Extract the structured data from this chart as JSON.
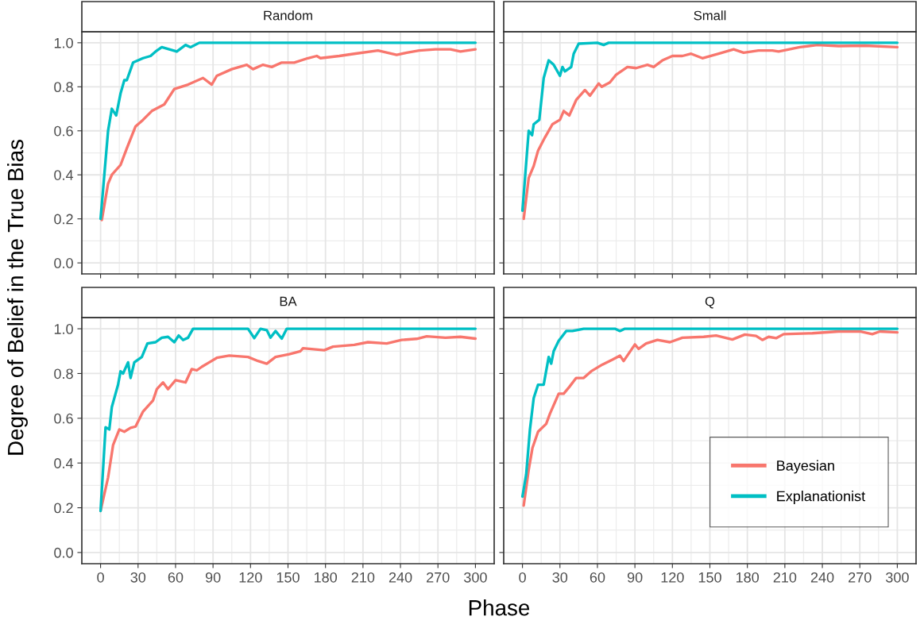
{
  "chart_data": [
    {
      "type": "line",
      "title": "Random",
      "ylabel": "Degree of Belief in the True Bias",
      "xlim": [
        -15,
        315
      ],
      "ylim": [
        -0.05,
        1.05
      ],
      "xticks": [
        {
          "value": 0,
          "label": null
        },
        {
          "value": 30,
          "label": null
        },
        {
          "value": 60,
          "label": null
        },
        {
          "value": 90,
          "label": null
        },
        {
          "value": 120,
          "label": null
        },
        {
          "value": 150,
          "label": null
        },
        {
          "value": 180,
          "label": null
        },
        {
          "value": 210,
          "label": null
        },
        {
          "value": 240,
          "label": null
        },
        {
          "value": 270,
          "label": null
        },
        {
          "value": 300,
          "label": null
        }
      ],
      "yticks": [
        {
          "value": 0,
          "label": "0.0"
        },
        {
          "value": 0.2,
          "label": "0.2"
        },
        {
          "value": 0.4,
          "label": "0.4"
        },
        {
          "value": 0.6,
          "label": "0.6"
        },
        {
          "value": 0.8,
          "label": "0.8"
        },
        {
          "value": 1,
          "label": "1.0"
        }
      ],
      "grid": true,
      "legend": false,
      "tick_labels": "y",
      "series": [
        {
          "color": "#f8766d",
          "x": [
            1,
            6,
            9,
            16,
            21,
            28,
            34,
            41,
            51,
            59,
            70,
            82,
            89,
            93,
            105,
            117,
            122,
            130,
            137,
            145,
            155,
            166,
            173,
            176,
            191,
            203,
            222,
            237,
            245,
            255,
            268,
            280,
            288,
            300
          ],
          "values": [
            0.195,
            0.36,
            0.4,
            0.445,
            0.52,
            0.62,
            0.65,
            0.69,
            0.72,
            0.79,
            0.81,
            0.84,
            0.81,
            0.85,
            0.88,
            0.9,
            0.88,
            0.9,
            0.89,
            0.91,
            0.91,
            0.93,
            0.94,
            0.93,
            0.94,
            0.95,
            0.965,
            0.945,
            0.955,
            0.965,
            0.97,
            0.97,
            0.96,
            0.97
          ]
        },
        {
          "color": "#00bfc4",
          "x": [
            0,
            6,
            9,
            12.5,
            16,
            19,
            21,
            26,
            34,
            40,
            44,
            49,
            55,
            61,
            68,
            72,
            79,
            300
          ],
          "values": [
            0.2,
            0.6,
            0.7,
            0.67,
            0.77,
            0.83,
            0.83,
            0.91,
            0.93,
            0.94,
            0.96,
            0.98,
            0.97,
            0.96,
            0.99,
            0.98,
            1.0,
            1.0
          ]
        }
      ]
    },
    {
      "type": "line",
      "title": "Small",
      "xlim": [
        -15,
        315
      ],
      "ylim": [
        -0.05,
        1.05
      ],
      "xticks": [
        {
          "value": 0,
          "label": null
        },
        {
          "value": 30,
          "label": null
        },
        {
          "value": 60,
          "label": null
        },
        {
          "value": 90,
          "label": null
        },
        {
          "value": 120,
          "label": null
        },
        {
          "value": 150,
          "label": null
        },
        {
          "value": 180,
          "label": null
        },
        {
          "value": 210,
          "label": null
        },
        {
          "value": 240,
          "label": null
        },
        {
          "value": 270,
          "label": null
        },
        {
          "value": 300,
          "label": null
        }
      ],
      "yticks": [
        {
          "value": 0,
          "label": null
        },
        {
          "value": 0.2,
          "label": null
        },
        {
          "value": 0.4,
          "label": null
        },
        {
          "value": 0.6,
          "label": null
        },
        {
          "value": 0.8,
          "label": null
        },
        {
          "value": 1,
          "label": null
        }
      ],
      "grid": true,
      "legend": false,
      "tick_labels": false,
      "series": [
        {
          "color": "#f8766d",
          "x": [
            1,
            5,
            9,
            12.5,
            18,
            24,
            30,
            33,
            37.5,
            43,
            50,
            54,
            61,
            63.5,
            70,
            75,
            84,
            91,
            100,
            105,
            112,
            120,
            128,
            135,
            144,
            157,
            169,
            177,
            189,
            200,
            205,
            222,
            236,
            253,
            274,
            300
          ],
          "values": [
            0.2,
            0.386,
            0.44,
            0.51,
            0.57,
            0.63,
            0.65,
            0.69,
            0.67,
            0.74,
            0.785,
            0.76,
            0.815,
            0.8,
            0.82,
            0.855,
            0.89,
            0.885,
            0.9,
            0.89,
            0.92,
            0.94,
            0.94,
            0.95,
            0.93,
            0.95,
            0.97,
            0.955,
            0.965,
            0.965,
            0.96,
            0.98,
            0.99,
            0.985,
            0.987,
            0.98
          ]
        },
        {
          "color": "#00bfc4",
          "x": [
            0,
            5,
            7.7,
            9,
            13.5,
            17,
            21,
            25,
            30,
            32,
            34,
            39,
            41,
            45,
            60,
            65,
            69,
            300
          ],
          "values": [
            0.237,
            0.6,
            0.58,
            0.63,
            0.65,
            0.84,
            0.92,
            0.9,
            0.85,
            0.89,
            0.87,
            0.89,
            0.95,
            0.996,
            1.0,
            0.99,
            1.0,
            1.0
          ]
        }
      ]
    },
    {
      "type": "line",
      "title": "BA",
      "xlabel": "Phase",
      "xlim": [
        -15,
        315
      ],
      "ylim": [
        -0.05,
        1.05
      ],
      "xticks": [
        0,
        30,
        60,
        90,
        120,
        150,
        180,
        210,
        240,
        270,
        300
      ],
      "yticks": [
        {
          "value": 0,
          "label": "0.0"
        },
        {
          "value": 0.2,
          "label": "0.2"
        },
        {
          "value": 0.4,
          "label": "0.4"
        },
        {
          "value": 0.6,
          "label": "0.6"
        },
        {
          "value": 0.8,
          "label": "0.8"
        },
        {
          "value": 1,
          "label": "1.0"
        }
      ],
      "grid": true,
      "legend": false,
      "series": [
        {
          "color": "#f8766d",
          "x": [
            0,
            6,
            10,
            15,
            19,
            24,
            28,
            34,
            42,
            45,
            50,
            54,
            57,
            60,
            68,
            73,
            77,
            81,
            87,
            93,
            103,
            118,
            126,
            133,
            140,
            151,
            160,
            162,
            179,
            186,
            203,
            214,
            229,
            241,
            253,
            261,
            276,
            288,
            300
          ],
          "values": [
            0.186,
            0.335,
            0.48,
            0.55,
            0.54,
            0.557,
            0.563,
            0.63,
            0.68,
            0.73,
            0.76,
            0.73,
            0.75,
            0.77,
            0.76,
            0.82,
            0.814,
            0.83,
            0.85,
            0.87,
            0.88,
            0.874,
            0.856,
            0.844,
            0.874,
            0.886,
            0.9,
            0.913,
            0.904,
            0.92,
            0.928,
            0.94,
            0.934,
            0.95,
            0.955,
            0.966,
            0.96,
            0.964,
            0.956
          ]
        },
        {
          "color": "#00bfc4",
          "x": [
            0,
            4,
            7,
            9,
            14,
            16,
            18,
            22,
            24,
            27,
            33,
            37.5,
            44,
            49,
            54,
            59,
            62.5,
            66,
            70,
            74,
            118,
            123,
            128,
            133,
            136,
            140,
            145,
            149,
            300
          ],
          "values": [
            0.186,
            0.56,
            0.55,
            0.65,
            0.75,
            0.81,
            0.8,
            0.85,
            0.78,
            0.85,
            0.874,
            0.934,
            0.94,
            0.96,
            0.964,
            0.94,
            0.97,
            0.95,
            0.96,
            1.0,
            1.0,
            0.958,
            1.0,
            0.994,
            0.96,
            0.99,
            0.956,
            1.0,
            1.0
          ]
        }
      ]
    },
    {
      "type": "line",
      "title": "Q",
      "xlim": [
        -15,
        315
      ],
      "ylim": [
        -0.05,
        1.05
      ],
      "xticks": [
        0,
        30,
        60,
        90,
        120,
        150,
        180,
        210,
        240,
        270,
        300
      ],
      "yticks": [
        {
          "value": 0,
          "label": null
        },
        {
          "value": 0.2,
          "label": null
        },
        {
          "value": 0.4,
          "label": null
        },
        {
          "value": 0.6,
          "label": null
        },
        {
          "value": 0.8,
          "label": null
        },
        {
          "value": 1,
          "label": null
        }
      ],
      "grid": true,
      "legend": "bottom right",
      "tick_labels": "x",
      "series": [
        {
          "name": "Bayesian",
          "color": "#f8766d",
          "x": [
            1,
            5,
            8,
            12.5,
            19,
            22,
            29,
            33,
            37.5,
            43,
            49,
            55,
            64,
            72,
            78,
            81,
            90,
            93,
            99,
            108,
            118,
            128,
            145,
            155,
            168,
            178,
            187,
            192,
            197,
            203,
            209,
            232,
            253,
            270,
            280,
            286,
            300
          ],
          "values": [
            0.21,
            0.37,
            0.467,
            0.54,
            0.575,
            0.62,
            0.71,
            0.71,
            0.74,
            0.78,
            0.78,
            0.81,
            0.84,
            0.862,
            0.88,
            0.856,
            0.93,
            0.91,
            0.934,
            0.95,
            0.94,
            0.96,
            0.964,
            0.97,
            0.952,
            0.974,
            0.968,
            0.95,
            0.964,
            0.958,
            0.976,
            0.98,
            0.988,
            0.988,
            0.976,
            0.988,
            0.984
          ]
        },
        {
          "name": "Explanationist",
          "color": "#00bfc4",
          "x": [
            0,
            3,
            6,
            9,
            12.5,
            17,
            21,
            23,
            25,
            29,
            35,
            40,
            49,
            74,
            78,
            82,
            300
          ],
          "values": [
            0.25,
            0.35,
            0.55,
            0.69,
            0.75,
            0.75,
            0.874,
            0.844,
            0.9,
            0.946,
            0.99,
            0.99,
            1.0,
            1.0,
            0.99,
            1.0,
            1.0
          ]
        }
      ]
    }
  ]
}
